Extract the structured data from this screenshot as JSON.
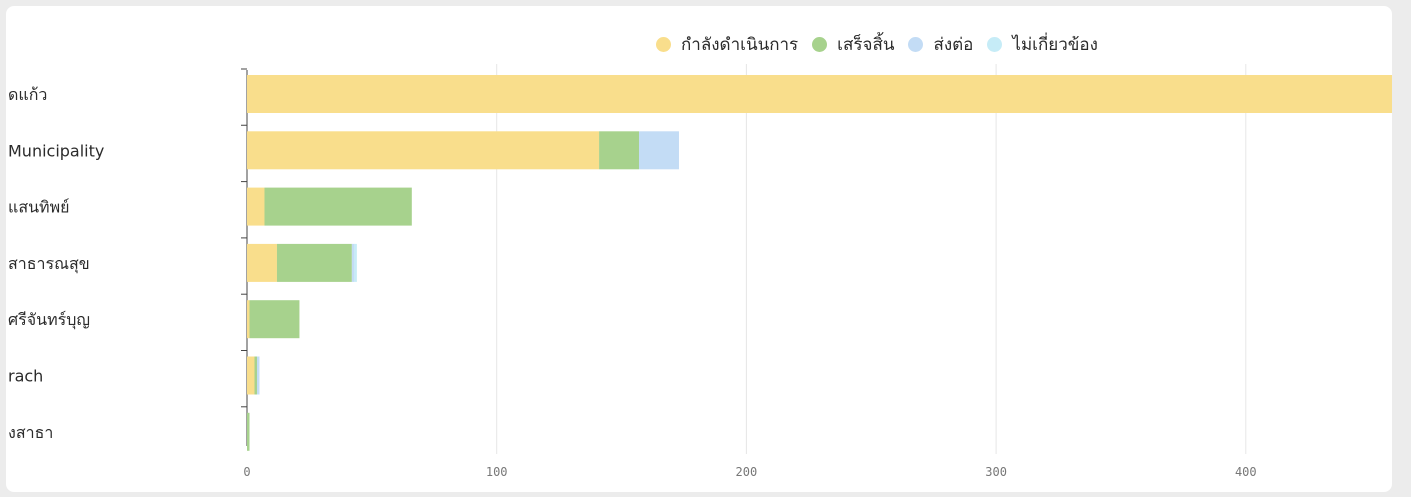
{
  "chart_data": {
    "type": "bar",
    "orientation": "horizontal",
    "stacked": true,
    "categories": [
      "ดแก้ว",
      "Municipality",
      "แสนทิพย์",
      "สาธารณสุข",
      "ศรีจันทร์บุญ",
      "rach",
      "งสาธา"
    ],
    "series": [
      {
        "name": "กำลังดำเนินการ",
        "color": "#f9de8c",
        "values": [
          460,
          141,
          7,
          12,
          1,
          3,
          0
        ]
      },
      {
        "name": "เสร็จสิ้น",
        "color": "#a7d28d",
        "values": [
          0,
          16,
          59,
          30,
          20,
          1,
          1
        ]
      },
      {
        "name": "ส่งต่อ",
        "color": "#c3dcf5",
        "values": [
          0,
          16,
          0,
          1,
          0,
          1,
          0
        ]
      },
      {
        "name": "ไม่เกี่ยวข้อง",
        "color": "#c6ecf7",
        "values": [
          0,
          0,
          0,
          1,
          0,
          0,
          0
        ]
      }
    ],
    "xticks": [
      "0",
      "100",
      "200",
      "300",
      "400"
    ],
    "xlim": [
      0,
      460
    ],
    "grid": true,
    "legend_position": "top-right"
  }
}
